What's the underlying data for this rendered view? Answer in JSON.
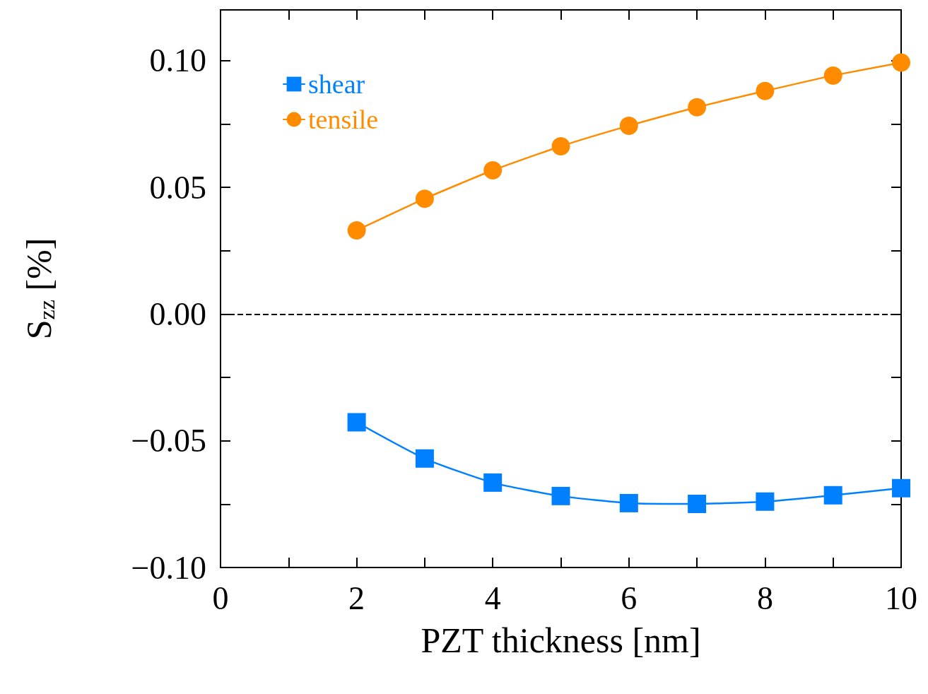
{
  "chart_data": {
    "type": "line",
    "xlabel": "PZT thickness [nm]",
    "ylabel": "S$_{zz}$ [%]",
    "x": [
      2,
      3,
      4,
      5,
      6,
      7,
      8,
      9,
      10
    ],
    "series": [
      {
        "name": "shear",
        "color": "#0080ff",
        "marker": "square",
        "values": [
          -0.0427,
          -0.057,
          -0.0665,
          -0.0718,
          -0.0746,
          -0.0749,
          -0.074,
          -0.0715,
          -0.0687
        ]
      },
      {
        "name": "tensile",
        "color": "#ff8c00",
        "marker": "circle",
        "values": [
          0.033,
          0.0455,
          0.0567,
          0.0662,
          0.0743,
          0.0816,
          0.088,
          0.0941,
          0.0992
        ]
      }
    ],
    "xlim": [
      0,
      10
    ],
    "ylim": [
      -0.1,
      0.12
    ],
    "xticks": [
      0,
      {
        "value": 1,
        "label": null
      },
      2,
      {
        "value": 3,
        "label": null
      },
      4,
      {
        "value": 5,
        "label": null
      },
      6,
      {
        "value": 7,
        "label": null
      },
      8,
      {
        "value": 9,
        "label": null
      },
      10
    ],
    "yticks": [
      {
        "value": -0.1,
        "label": "−0.10"
      },
      {
        "value": -0.075,
        "label": null
      },
      {
        "value": -0.05,
        "label": "−0.05"
      },
      {
        "value": -0.025,
        "label": null
      },
      {
        "value": 0,
        "label": "0.00"
      },
      {
        "value": 0.025,
        "label": null
      },
      {
        "value": 0.05,
        "label": "0.05"
      },
      {
        "value": 0.075,
        "label": null
      },
      {
        "value": 0.1,
        "label": "0.10"
      }
    ],
    "ref_lines": [
      {
        "axis": "y",
        "value": 0,
        "color": "#000000",
        "line_style": "dashed"
      }
    ],
    "grid": false,
    "legend": "top left",
    "line_style": "solid"
  }
}
